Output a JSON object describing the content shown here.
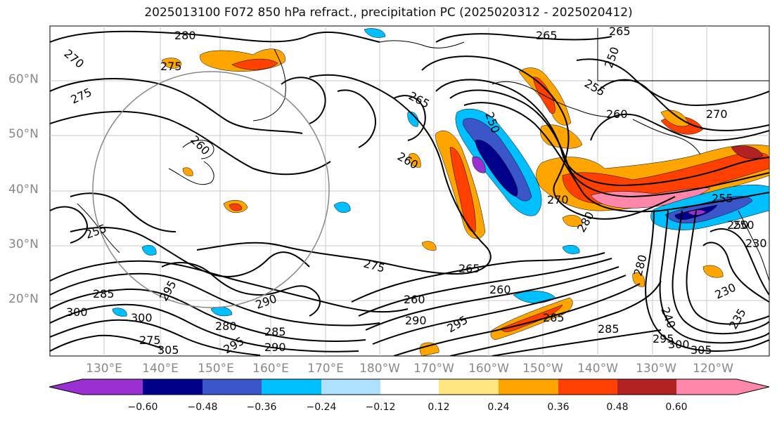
{
  "title": "2025013100 F072 850 hPa refract., precipitation PC (2025020312 - 2025020412)",
  "lat_labels": [
    "60°N",
    "50°N",
    "40°N",
    "30°N",
    "20°N"
  ],
  "lon_labels": [
    "130°E",
    "140°E",
    "150°E",
    "160°E",
    "170°E",
    "180°W",
    "170°W",
    "160°W",
    "150°W",
    "140°W",
    "130°W",
    "120°W"
  ],
  "contour_labels": [
    "280",
    "270",
    "275",
    "275",
    "260",
    "255",
    "265",
    "265",
    "250",
    "260",
    "260",
    "270",
    "280",
    "275",
    "265",
    "260",
    "280",
    "270",
    "250",
    "255",
    "285",
    "300",
    "300",
    "295",
    "290",
    "280",
    "285",
    "275",
    "305",
    "295",
    "290",
    "260",
    "290",
    "295",
    "265",
    "285",
    "295",
    "300",
    "305",
    "250",
    "230",
    "240",
    "235",
    "255",
    "265",
    "250",
    "230"
  ],
  "colorbar": {
    "ticks": [
      "−0.60",
      "−0.48",
      "−0.36",
      "−0.24",
      "−0.12",
      "0.12",
      "0.24",
      "0.36",
      "0.48",
      "0.60"
    ],
    "colors": [
      "#9a30d0",
      "#00008b",
      "#3a56c8",
      "#00bfff",
      "#b0e0ff",
      "#ffffff",
      "#ffe680",
      "#ffa500",
      "#ff4000",
      "#b22222",
      "#ff88aa"
    ]
  },
  "legend_range": {
    "min": -0.6,
    "max": 0.6
  }
}
